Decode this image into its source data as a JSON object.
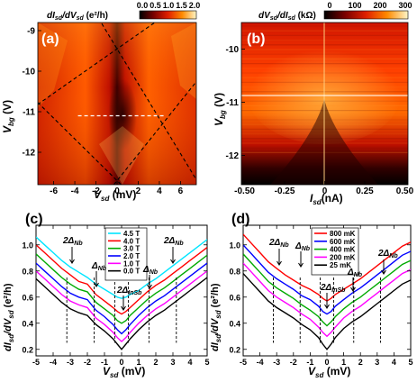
{
  "panels": {
    "a": {
      "label": "(a)",
      "colorbar_title": "dI",
      "colorbar_title_parts": [
        "dI",
        "sd",
        "/dV",
        "sd",
        " (e²/h)"
      ],
      "colorbar_ticks": [
        "0.0",
        "0.5",
        "1.0",
        "1.5",
        "2.0"
      ],
      "xlabel": "V",
      "xlabel_sub": "sd",
      "xlabel_unit": " (mV)",
      "ylabel": "V",
      "ylabel_sub": "bg",
      "ylabel_unit": " (V)",
      "x_ticks": [
        "-6",
        "-4",
        "-2",
        "0",
        "2",
        "4",
        "6"
      ],
      "y_ticks": [
        "-9",
        "-10",
        "-11",
        "-12"
      ]
    },
    "b": {
      "label": "(b)",
      "colorbar_title_parts": [
        "dV",
        "sd",
        "/dI",
        "sd",
        " (kΩ)"
      ],
      "colorbar_ticks": [
        "0",
        "100",
        "200",
        "300"
      ],
      "xlabel": "I",
      "xlabel_sub": "sd",
      "xlabel_unit": "(nA)",
      "ylabel": "V",
      "ylabel_sub": "bg",
      "ylabel_unit": " (V)",
      "x_ticks": [
        "-0.50",
        "-0.25",
        "0",
        "0.25",
        "0.50"
      ],
      "y_ticks": [
        "-10",
        "-11",
        "-12"
      ]
    },
    "c": {
      "label": "(c)",
      "xlabel": "V",
      "xlabel_sub": "sd",
      "xlabel_unit": " (mV)",
      "ylabel_parts": [
        "dI",
        "sd",
        "/dV",
        "sd",
        " (e²/h)"
      ],
      "x_ticks": [
        "-5",
        "-4",
        "-3",
        "-2",
        "-1",
        "0",
        "1",
        "2",
        "3",
        "4",
        "5"
      ],
      "y_ticks": [
        "0.2",
        "0.4",
        "0.6",
        "0.8",
        "1.0"
      ],
      "annotations": [
        {
          "main": "2Δ",
          "sub": "Nb"
        },
        {
          "main": "Δ",
          "sub": "Nb"
        },
        {
          "main": "2Δ",
          "sub": "InSb"
        },
        {
          "main": "Δ",
          "sub": "Nb"
        },
        {
          "main": "2Δ",
          "sub": "Nb"
        }
      ],
      "legend": [
        "4.5 T",
        "4.0 T",
        "3.0 T",
        "2.0 T",
        "1.0 T",
        "0.0 T"
      ]
    },
    "d": {
      "label": "(d)",
      "xlabel": "V",
      "xlabel_sub": "sd",
      "xlabel_unit": " (mV)",
      "ylabel_parts": [
        "dI",
        "sd",
        "/dV",
        "sd",
        " (e²/h)"
      ],
      "x_ticks": [
        "-5",
        "-4",
        "-3",
        "-2",
        "-1",
        "0",
        "1",
        "2",
        "3",
        "4",
        "5"
      ],
      "y_ticks": [
        "0.2",
        "0.4",
        "0.6",
        "0.8",
        "1.0"
      ],
      "annotations": [
        {
          "main": "2Δ",
          "sub": "Nb"
        },
        {
          "main": "Δ",
          "sub": "Nb"
        },
        {
          "main": "2Δ",
          "sub": "InSb"
        },
        {
          "main": "Δ",
          "sub": "Nb"
        },
        {
          "main": "2Δ",
          "sub": "Nb"
        }
      ],
      "legend": [
        "800 mK",
        "600 mK",
        "400 mK",
        "200 mK",
        "25  mK"
      ]
    }
  },
  "chart_data": [
    {
      "type": "heatmap",
      "panel": "a",
      "x_range": [
        -7.5,
        7.5
      ],
      "y_range": [
        -12.8,
        -8.8
      ],
      "color_range": [
        0.0,
        2.0
      ],
      "colormap": [
        "#000000",
        "#7a0000",
        "#e02000",
        "#ff8a00",
        "#ffffff"
      ],
      "diamond_apices": [
        {
          "x": 0,
          "y": -9.45
        },
        {
          "x": 0,
          "y": -12.7
        }
      ],
      "diamond_vertices": [
        {
          "x": -7.4,
          "y": -10.8
        },
        {
          "x": 4.3,
          "y": -11.3
        }
      ],
      "dashed_cut_y": -11.1
    },
    {
      "type": "heatmap",
      "panel": "b",
      "x_range": [
        -0.52,
        0.52
      ],
      "y_range": [
        -12.55,
        -9.5
      ],
      "color_range": [
        0,
        300
      ],
      "colormap": [
        "#000000",
        "#7a0000",
        "#e02000",
        "#ff8a00",
        "#ffffff"
      ]
    },
    {
      "type": "line",
      "panel": "c",
      "x_range": [
        -5,
        5
      ],
      "y_range": [
        0.15,
        1.15
      ],
      "x_samples": [
        -5,
        -4.5,
        -4,
        -3.5,
        -3,
        -2.5,
        -2,
        -1.5,
        -1,
        -0.5,
        -0.25,
        0,
        0.25,
        0.5,
        1,
        1.5,
        2,
        2.5,
        3,
        3.5,
        4,
        4.5,
        5
      ],
      "series": [
        {
          "name": "4.5 T",
          "color": "#00e5ff",
          "values": [
            1.06,
            1.0,
            0.94,
            0.88,
            0.83,
            0.79,
            0.75,
            0.7,
            0.66,
            0.62,
            0.6,
            0.59,
            0.6,
            0.62,
            0.65,
            0.7,
            0.74,
            0.79,
            0.84,
            0.89,
            0.94,
            0.99,
            1.04
          ]
        },
        {
          "name": "4.0 T",
          "color": "#ff0000",
          "values": [
            1.0,
            0.94,
            0.88,
            0.82,
            0.77,
            0.72,
            0.7,
            0.62,
            0.57,
            0.52,
            0.49,
            0.47,
            0.49,
            0.52,
            0.58,
            0.64,
            0.69,
            0.73,
            0.78,
            0.83,
            0.88,
            0.93,
            0.98
          ]
        },
        {
          "name": "3.0 T",
          "color": "#00aa00",
          "values": [
            0.93,
            0.87,
            0.81,
            0.75,
            0.7,
            0.66,
            0.64,
            0.56,
            0.51,
            0.46,
            0.42,
            0.4,
            0.42,
            0.46,
            0.52,
            0.58,
            0.63,
            0.67,
            0.72,
            0.77,
            0.82,
            0.87,
            0.92
          ]
        },
        {
          "name": "2.0 T",
          "color": "#0000ff",
          "values": [
            0.86,
            0.8,
            0.74,
            0.68,
            0.63,
            0.6,
            0.58,
            0.5,
            0.45,
            0.39,
            0.35,
            0.32,
            0.35,
            0.39,
            0.46,
            0.52,
            0.57,
            0.61,
            0.66,
            0.71,
            0.76,
            0.81,
            0.86
          ]
        },
        {
          "name": "1.0 T",
          "color": "#ff00ff",
          "values": [
            0.8,
            0.74,
            0.68,
            0.62,
            0.57,
            0.54,
            0.52,
            0.44,
            0.39,
            0.33,
            0.29,
            0.26,
            0.29,
            0.33,
            0.4,
            0.46,
            0.51,
            0.55,
            0.6,
            0.65,
            0.7,
            0.75,
            0.8
          ]
        },
        {
          "name": "0.0 T",
          "color": "#000000",
          "values": [
            0.74,
            0.68,
            0.62,
            0.56,
            0.51,
            0.48,
            0.46,
            0.39,
            0.34,
            0.28,
            0.24,
            0.2,
            0.24,
            0.28,
            0.35,
            0.41,
            0.46,
            0.5,
            0.55,
            0.6,
            0.65,
            0.7,
            0.75
          ]
        }
      ]
    },
    {
      "type": "line",
      "panel": "d",
      "x_range": [
        -5,
        5
      ],
      "y_range": [
        0.15,
        1.15
      ],
      "x_samples": [
        -5,
        -4.5,
        -4,
        -3.5,
        -3,
        -2.5,
        -2,
        -1.5,
        -1,
        -0.5,
        -0.25,
        0,
        0.25,
        0.5,
        1,
        1.5,
        2,
        2.5,
        3,
        3.5,
        4,
        4.5,
        5
      ],
      "series": [
        {
          "name": "800 mK",
          "color": "#ff0000",
          "values": [
            1.08,
            1.01,
            0.94,
            0.87,
            0.82,
            0.77,
            0.73,
            0.69,
            0.66,
            0.62,
            0.59,
            0.57,
            0.59,
            0.62,
            0.66,
            0.7,
            0.74,
            0.79,
            0.84,
            0.89,
            0.94,
            0.99,
            1.02
          ]
        },
        {
          "name": "600 mK",
          "color": "#0000ff",
          "values": [
            1.0,
            0.93,
            0.86,
            0.79,
            0.74,
            0.7,
            0.66,
            0.61,
            0.58,
            0.53,
            0.49,
            0.47,
            0.49,
            0.53,
            0.58,
            0.63,
            0.67,
            0.72,
            0.77,
            0.82,
            0.87,
            0.92,
            0.95
          ]
        },
        {
          "name": "400 mK",
          "color": "#00aa00",
          "values": [
            0.93,
            0.86,
            0.79,
            0.72,
            0.67,
            0.63,
            0.59,
            0.54,
            0.5,
            0.45,
            0.41,
            0.38,
            0.41,
            0.45,
            0.51,
            0.56,
            0.6,
            0.65,
            0.7,
            0.75,
            0.8,
            0.85,
            0.88
          ]
        },
        {
          "name": "200 mK",
          "color": "#ff00ff",
          "values": [
            0.86,
            0.79,
            0.72,
            0.65,
            0.6,
            0.56,
            0.52,
            0.47,
            0.43,
            0.37,
            0.33,
            0.3,
            0.33,
            0.37,
            0.44,
            0.49,
            0.53,
            0.58,
            0.63,
            0.68,
            0.73,
            0.78,
            0.81
          ]
        },
        {
          "name": "25  mK",
          "color": "#000000",
          "values": [
            0.78,
            0.71,
            0.64,
            0.57,
            0.52,
            0.48,
            0.44,
            0.39,
            0.35,
            0.29,
            0.24,
            0.2,
            0.24,
            0.29,
            0.36,
            0.41,
            0.45,
            0.5,
            0.55,
            0.6,
            0.65,
            0.7,
            0.73
          ]
        }
      ]
    }
  ]
}
